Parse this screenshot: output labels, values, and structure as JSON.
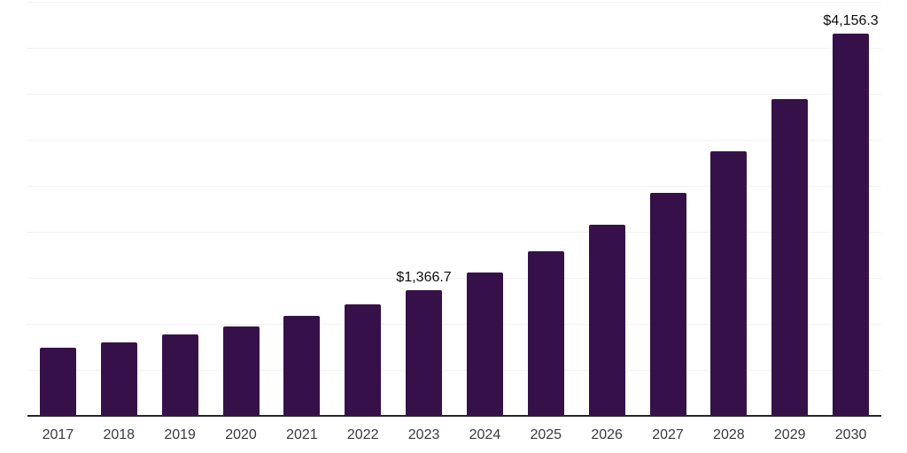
{
  "chart_data": {
    "type": "bar",
    "title": "",
    "xlabel": "",
    "ylabel": "",
    "categories": [
      "2017",
      "2018",
      "2019",
      "2020",
      "2021",
      "2022",
      "2023",
      "2024",
      "2025",
      "2026",
      "2027",
      "2028",
      "2029",
      "2030"
    ],
    "values": [
      745,
      802,
      883,
      969,
      1090,
      1211,
      1366.7,
      1553,
      1788,
      2076,
      2420,
      2877,
      3442,
      4156.3
    ],
    "data_labels": [
      {
        "category": "2023",
        "text": "$1,366.7"
      },
      {
        "category": "2030",
        "text": "$4,156.3"
      }
    ],
    "ylim": [
      0,
      4500
    ],
    "gridline_step": 500,
    "grid": "horizontal gridlines only, no y-axis tick labels",
    "legend": "none",
    "colors": {
      "bar": "#361149",
      "axis_line": "#262626",
      "gridline": "#f2f2f2",
      "data_label": "#0d0d0d",
      "tick_label": "#3a3a3a",
      "background": "#ffffff"
    }
  }
}
